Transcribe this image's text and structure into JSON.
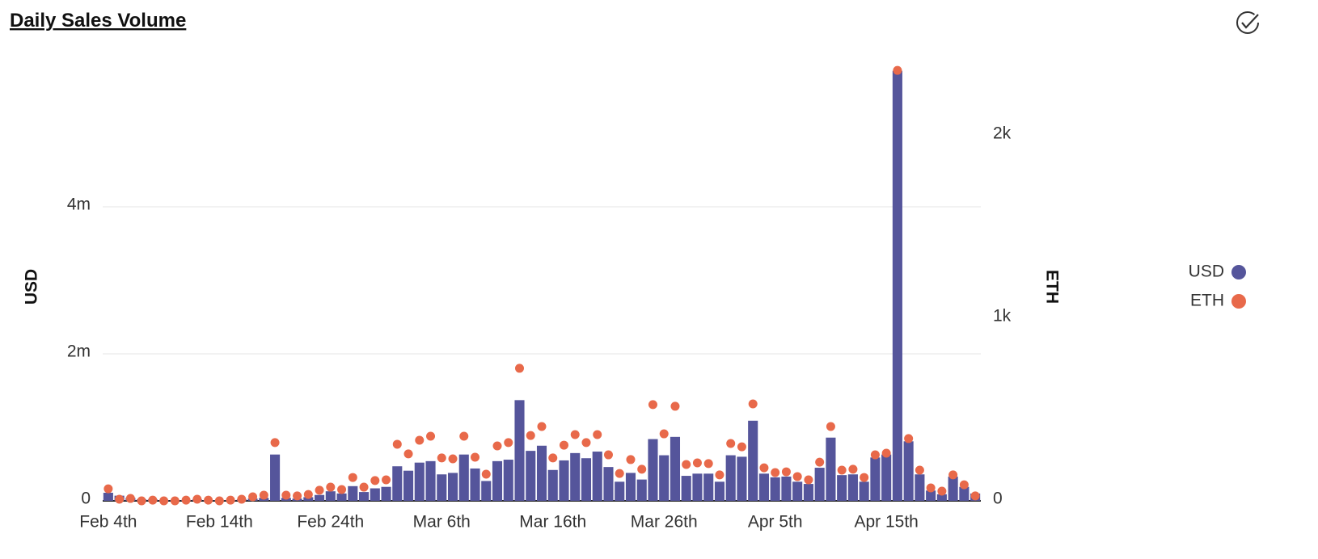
{
  "chart_data": {
    "type": "bar",
    "title": "Daily Sales Volume",
    "y_label": "USD",
    "y2_label": "ETH",
    "categories": [
      "Feb 4th",
      null,
      null,
      null,
      null,
      null,
      null,
      null,
      null,
      null,
      "Feb 14th",
      null,
      null,
      null,
      null,
      null,
      null,
      null,
      null,
      null,
      "Feb 24th",
      null,
      null,
      null,
      null,
      null,
      null,
      null,
      null,
      null,
      "Mar 6th",
      null,
      null,
      null,
      null,
      null,
      null,
      null,
      null,
      null,
      "Mar 16th",
      null,
      null,
      null,
      null,
      null,
      null,
      null,
      null,
      null,
      "Mar 26th",
      null,
      null,
      null,
      null,
      null,
      null,
      null,
      null,
      null,
      "Apr 5th",
      null,
      null,
      null,
      null,
      null,
      null,
      null,
      null,
      null,
      "Apr 15th",
      null,
      null,
      null,
      null,
      null,
      null,
      null,
      null
    ],
    "series": [
      {
        "name": "USD",
        "type": "bar",
        "color": "#55559b",
        "values": [
          110000,
          70000,
          40000,
          20000,
          20000,
          10000,
          10000,
          10000,
          20000,
          10000,
          10000,
          10000,
          20000,
          30000,
          40000,
          630000,
          40000,
          30000,
          50000,
          80000,
          130000,
          100000,
          200000,
          120000,
          170000,
          190000,
          470000,
          410000,
          520000,
          540000,
          360000,
          380000,
          630000,
          440000,
          270000,
          540000,
          560000,
          1370000,
          680000,
          750000,
          420000,
          550000,
          650000,
          580000,
          670000,
          460000,
          260000,
          380000,
          290000,
          840000,
          620000,
          870000,
          340000,
          370000,
          370000,
          260000,
          620000,
          600000,
          1090000,
          370000,
          320000,
          330000,
          260000,
          230000,
          450000,
          860000,
          350000,
          360000,
          260000,
          590000,
          630000,
          5850000,
          810000,
          360000,
          140000,
          90000,
          330000,
          190000,
          100000
        ]
      },
      {
        "name": "ETH",
        "type": "scatter",
        "axis": "y2",
        "color": "#e8694a",
        "values": [
          66,
          9,
          13,
          0,
          4,
          0,
          0,
          4,
          9,
          4,
          0,
          4,
          9,
          22,
          31,
          319,
          31,
          27,
          35,
          58,
          75,
          62,
          128,
          75,
          111,
          115,
          310,
          257,
          332,
          354,
          235,
          230,
          354,
          239,
          146,
          301,
          319,
          726,
          358,
          407,
          235,
          305,
          363,
          319,
          363,
          252,
          150,
          226,
          173,
          527,
          367,
          518,
          199,
          208,
          204,
          142,
          314,
          296,
          531,
          181,
          155,
          159,
          133,
          115,
          212,
          407,
          168,
          173,
          128,
          252,
          261,
          2358,
          341,
          168,
          71,
          53,
          142,
          88,
          27
        ]
      }
    ],
    "ylim": [
      0,
      6000000
    ],
    "yticks": [
      0,
      {
        "value": 2000000,
        "label": "2m"
      },
      {
        "value": 4000000,
        "label": "4m"
      }
    ],
    "y2lim": [
      0,
      2416
    ],
    "y2ticks": [
      0,
      {
        "value": 1000,
        "label": "1k"
      },
      {
        "value": 2000,
        "label": "2k"
      }
    ],
    "grid": true,
    "legend": "right"
  }
}
